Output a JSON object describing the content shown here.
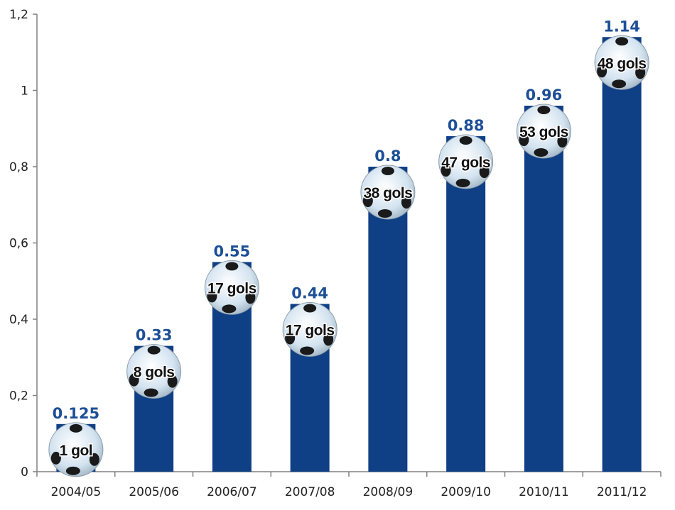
{
  "chart_data": {
    "type": "bar",
    "categories": [
      "2004/05",
      "2005/06",
      "2006/07",
      "2007/08",
      "2008/09",
      "2009/10",
      "2010/11",
      "2011/12"
    ],
    "values": [
      0.125,
      0.33,
      0.55,
      0.44,
      0.8,
      0.88,
      0.96,
      1.14
    ],
    "value_labels": [
      "0.125",
      "0.33",
      "0.55",
      "0.44",
      "0.8",
      "0.88",
      "0.96",
      "1.14"
    ],
    "goal_labels": [
      "1 gol",
      "8 gols",
      "17 gols",
      "17 gols",
      "38 gols",
      "47 gols",
      "53 gols",
      "48 gols"
    ],
    "ylim": [
      0,
      1.2
    ],
    "yticks": [
      0,
      0.2,
      0.4,
      0.6,
      0.8,
      1,
      1.2
    ],
    "ytick_labels": [
      "0",
      "0,2",
      "0,4",
      "0,6",
      "0,8",
      "1",
      "1,2"
    ],
    "title": "",
    "xlabel": "",
    "ylabel": "",
    "grid": false,
    "legend": "none",
    "colors": {
      "bar": "#0f3f85",
      "value_label": "#1d4f96",
      "axis": "#808080",
      "ball": "#cfe0ee",
      "ball_patch": "#1a1a1a"
    },
    "marker_icon": "soccer-ball-icon"
  }
}
